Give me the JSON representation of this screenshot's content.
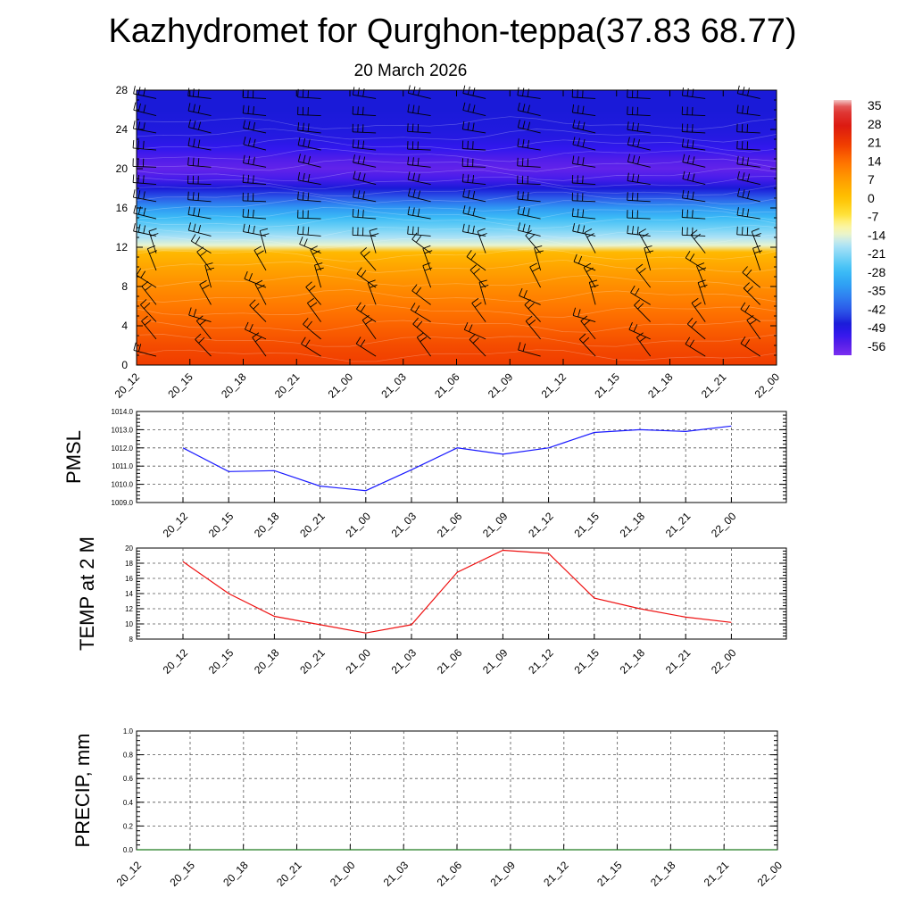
{
  "title": "Kazhydromet for Qurghon-teppa(37.83 68.77)",
  "subtitle": "20 March 2026",
  "colors": {
    "pmsl_line": "#1a1aff",
    "temp_line": "#ee1111",
    "precip_line": "#1f7a1f",
    "axis": "#000000"
  },
  "chart_data": [
    {
      "type": "heatmap",
      "name": "vertical-cross-section",
      "x_ticks": [
        "20_12",
        "20_15",
        "20_18",
        "20_21",
        "21_00",
        "21_03",
        "21_06",
        "21_09",
        "21_12",
        "21_15",
        "21_18",
        "21_21",
        "22_00"
      ],
      "y_ticks": [
        "0",
        "4",
        "8",
        "12",
        "16",
        "20",
        "24",
        "28"
      ],
      "ylim": [
        0,
        28
      ],
      "colorbar": {
        "labels": [
          "35",
          "28",
          "21",
          "14",
          "7",
          "0",
          "-7",
          "-14",
          "-21",
          "-28",
          "-35",
          "-42",
          "-49",
          "-56"
        ],
        "range": [
          -60,
          38
        ]
      },
      "temperature_profile": {
        "levels": [
          0,
          2,
          4,
          6,
          8,
          10,
          11.5,
          12.2,
          13,
          14,
          15,
          16,
          17,
          18,
          19,
          20,
          21,
          22,
          23,
          24,
          26,
          28
        ],
        "values": [
          21,
          19,
          16,
          13,
          10,
          6,
          2,
          -14,
          -18,
          -23,
          -28,
          -34,
          -42,
          -48,
          -54,
          -57,
          -55,
          -52,
          -50,
          -49,
          -48,
          -48
        ]
      },
      "wind_barbs": "uniform grid of wind barbs"
    },
    {
      "type": "line",
      "name": "pmsl",
      "ylabel": "PMSL",
      "categories": [
        "20_12",
        "20_15",
        "20_18",
        "20_21",
        "21_00",
        "21_03",
        "21_06",
        "21_09",
        "21_12",
        "21_15",
        "21_18",
        "21_21",
        "22_00"
      ],
      "values": [
        1012.0,
        1010.7,
        1010.75,
        1009.9,
        1009.65,
        1010.8,
        1012.0,
        1011.65,
        1012.0,
        1012.85,
        1013.0,
        1012.9,
        1013.2
      ],
      "ylim": [
        1009.0,
        1014.0
      ],
      "y_ticks": [
        "1009.0",
        "1010.0",
        "1011.0",
        "1012.0",
        "1013.0",
        "1014.0"
      ],
      "grid": true
    },
    {
      "type": "line",
      "name": "temp-2m",
      "ylabel": "TEMP at 2 M",
      "categories": [
        "20_12",
        "20_15",
        "20_18",
        "20_21",
        "21_00",
        "21_03",
        "21_06",
        "21_09",
        "21_12",
        "21_15",
        "21_18",
        "21_21",
        "22_00"
      ],
      "values": [
        18.2,
        14.0,
        11.0,
        9.9,
        8.8,
        9.9,
        16.8,
        19.7,
        19.3,
        13.4,
        12.0,
        10.9,
        10.2
      ],
      "ylim": [
        8,
        20
      ],
      "y_ticks": [
        "8",
        "10",
        "12",
        "14",
        "16",
        "18",
        "20"
      ],
      "grid": true
    },
    {
      "type": "line",
      "name": "precip",
      "ylabel": "PRECIP, mm",
      "categories": [
        "20_12",
        "20_15",
        "20_18",
        "20_21",
        "21_00",
        "21_03",
        "21_06",
        "21_09",
        "21_12",
        "21_15",
        "21_18",
        "21_21",
        "22_00"
      ],
      "values": [
        0,
        0,
        0,
        0,
        0,
        0,
        0,
        0,
        0,
        0,
        0,
        0,
        0
      ],
      "ylim": [
        0.0,
        1.0
      ],
      "y_ticks": [
        "0.0",
        "0.2",
        "0.4",
        "0.6",
        "0.8",
        "1.0"
      ],
      "grid": true
    }
  ]
}
